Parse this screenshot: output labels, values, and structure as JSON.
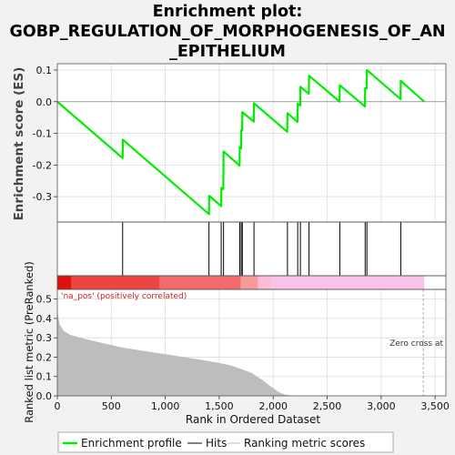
{
  "title": {
    "line1": "Enrichment plot:",
    "line2": "GOBP_REGULATION_OF_MORPHOGENESIS_OF_AN",
    "line3": "_EPITHELIUM"
  },
  "chart_data": {
    "type": "line",
    "xlabel": "Rank in Ordered Dataset",
    "x_ticks": [
      0,
      500,
      1000,
      1500,
      2000,
      2500,
      3000,
      3500
    ],
    "x_tick_labels": [
      "0",
      "500",
      "1,000",
      "1,500",
      "2,000",
      "2,500",
      "3,000",
      "3,500"
    ],
    "xlim": [
      0,
      3600
    ],
    "top_panel": {
      "ylabel": "Enrichment score (ES)",
      "ylim": [
        -0.38,
        0.12
      ],
      "y_ticks": [
        0.1,
        0.0,
        -0.1,
        -0.2,
        -0.3
      ],
      "y_tick_labels": [
        "0.1",
        "0.0",
        "-0.1",
        "-0.2",
        "-0.3"
      ],
      "series": [
        {
          "name": "Enrichment profile",
          "color": "#00ee00",
          "x": [
            0,
            605,
            607,
            1405,
            1407,
            1518,
            1520,
            1538,
            1540,
            1688,
            1690,
            1702,
            1704,
            1712,
            1714,
            1820,
            1822,
            2130,
            2132,
            2225,
            2227,
            2250,
            2252,
            2330,
            2332,
            2615,
            2617,
            2850,
            2852,
            2866,
            2868,
            3180,
            3182,
            3400
          ],
          "y": [
            0,
            -0.178,
            -0.12,
            -0.355,
            -0.297,
            -0.33,
            -0.272,
            -0.276,
            -0.157,
            -0.202,
            -0.143,
            -0.148,
            -0.09,
            -0.091,
            -0.033,
            -0.063,
            -0.005,
            -0.095,
            -0.036,
            -0.064,
            -0.006,
            -0.012,
            0.047,
            0.025,
            0.082,
            0.0,
            0.052,
            -0.015,
            0.043,
            0.042,
            0.1,
            0.008,
            0.066,
            0.0
          ]
        }
      ]
    },
    "hits": [
      605,
      1405,
      1518,
      1540,
      1690,
      1704,
      1714,
      1822,
      2132,
      2227,
      2252,
      2332,
      2617,
      2852,
      2868,
      3182
    ],
    "bottom_panel": {
      "ylabel": "Ranked list metric (PreRanked)",
      "ylim": [
        0,
        0.55
      ],
      "y_ticks": [
        0.0,
        0.1,
        0.2,
        0.3,
        0.4,
        0.5
      ],
      "y_tick_labels": [
        "0.0",
        "0.1",
        "0.2",
        "0.3",
        "0.4",
        "0.5"
      ],
      "metric_x": [
        0,
        20,
        60,
        120,
        250,
        400,
        600,
        800,
        1000,
        1200,
        1400,
        1500,
        1600,
        1700,
        1800,
        1850,
        1900,
        1950,
        2000,
        2050,
        2100,
        2150,
        2200,
        2300,
        3400
      ],
      "metric_y": [
        0.44,
        0.37,
        0.335,
        0.315,
        0.295,
        0.275,
        0.25,
        0.232,
        0.215,
        0.198,
        0.18,
        0.17,
        0.158,
        0.14,
        0.118,
        0.1,
        0.082,
        0.06,
        0.04,
        0.02,
        0.008,
        0.003,
        0.0,
        0.0,
        0.0
      ],
      "pos_label": "'na_pos' (positively correlated)",
      "zero_cross_label": "Zero cross at",
      "zero_cross_x": 3390
    },
    "bar_segments": [
      {
        "x0": 0,
        "x1": 130,
        "color": "#e01010"
      },
      {
        "x0": 130,
        "x1": 950,
        "color": "#ee4444"
      },
      {
        "x0": 950,
        "x1": 1700,
        "color": "#f46a6a"
      },
      {
        "x0": 1700,
        "x1": 1860,
        "color": "#f89a9a"
      },
      {
        "x0": 1860,
        "x1": 1980,
        "color": "#fabcd8"
      },
      {
        "x0": 1980,
        "x1": 3400,
        "color": "#f9c2e8"
      }
    ],
    "legend": [
      {
        "label": "Enrichment profile",
        "color": "#00ee00"
      },
      {
        "label": "Hits",
        "color": "#000000"
      },
      {
        "label": "Ranking metric scores",
        "color": "#bbbbbb"
      }
    ],
    "legend_placement": "bottom"
  }
}
